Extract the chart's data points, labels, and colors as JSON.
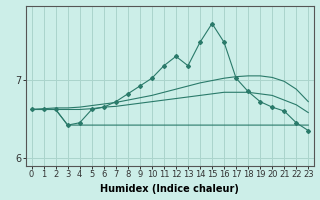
{
  "xlabel": "Humidex (Indice chaleur)",
  "background_color": "#cceee8",
  "grid_color": "#aad4cc",
  "line_color": "#2a7a6a",
  "x_values": [
    0,
    1,
    2,
    3,
    4,
    5,
    6,
    7,
    8,
    9,
    10,
    11,
    12,
    13,
    14,
    15,
    16,
    17,
    18,
    19,
    20,
    21,
    22,
    23
  ],
  "y_main": [
    6.62,
    6.62,
    6.62,
    6.42,
    6.45,
    6.62,
    6.65,
    6.72,
    6.82,
    6.92,
    7.02,
    7.18,
    7.3,
    7.18,
    7.48,
    7.72,
    7.48,
    7.02,
    6.85,
    6.72,
    6.65,
    6.6,
    6.45,
    6.35
  ],
  "y_upper": [
    6.62,
    6.63,
    6.64,
    6.64,
    6.65,
    6.67,
    6.69,
    6.71,
    6.74,
    6.77,
    6.8,
    6.84,
    6.88,
    6.92,
    6.96,
    6.99,
    7.02,
    7.04,
    7.05,
    7.05,
    7.03,
    6.98,
    6.88,
    6.72
  ],
  "y_lower": [
    6.62,
    6.62,
    6.62,
    6.62,
    6.62,
    6.63,
    6.65,
    6.66,
    6.68,
    6.7,
    6.72,
    6.74,
    6.76,
    6.78,
    6.8,
    6.82,
    6.84,
    6.84,
    6.84,
    6.82,
    6.8,
    6.74,
    6.68,
    6.58
  ],
  "y_flat": [
    6.62,
    6.62,
    6.62,
    6.42,
    6.42,
    6.42,
    6.42,
    6.42,
    6.42,
    6.42,
    6.42,
    6.42,
    6.42,
    6.42,
    6.42,
    6.42,
    6.42,
    6.42,
    6.42,
    6.42,
    6.42,
    6.42,
    6.42,
    6.42
  ],
  "ylim": [
    5.9,
    7.95
  ],
  "yticks": [
    6,
    7
  ],
  "xlabel_fontsize": 7,
  "tick_fontsize": 6
}
